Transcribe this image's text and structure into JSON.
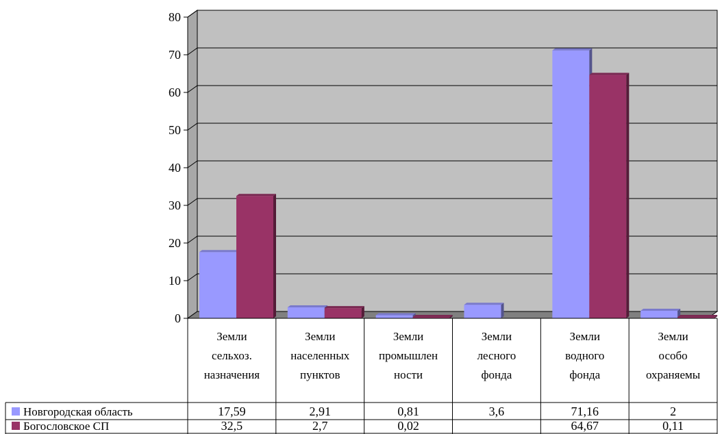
{
  "chart_data": {
    "type": "bar",
    "title": "",
    "xlabel": "",
    "ylabel": "",
    "ylim": [
      0,
      80
    ],
    "yticks": [
      "0",
      "10",
      "20",
      "30",
      "40",
      "50",
      "60",
      "70",
      "80"
    ],
    "grid": true,
    "legend_placement": "data-table-left",
    "categories": [
      [
        "Земли",
        "сельхоз.",
        "назначения"
      ],
      [
        "Земли",
        "населенных",
        "пунктов"
      ],
      [
        "Земли",
        "промышлен",
        "ности"
      ],
      [
        "Земли",
        "лесного",
        "фонда"
      ],
      [
        "Земли",
        "водного",
        "фонда"
      ],
      [
        "Земли",
        "особо",
        "охраняемы"
      ]
    ],
    "series": [
      {
        "name": "Новгородская область",
        "color": "#9999FF",
        "values": [
          17.59,
          2.91,
          0.81,
          3.6,
          71.16,
          2
        ],
        "labels": [
          "17,59",
          "2,91",
          "0,81",
          "3,6",
          "71,16",
          "2"
        ]
      },
      {
        "name": "Богословское СП",
        "color": "#993366",
        "values": [
          32.5,
          2.7,
          0.02,
          null,
          64.67,
          0.11
        ],
        "labels": [
          "32,5",
          "2,7",
          "0,02",
          "",
          "64,67",
          "0,11"
        ]
      }
    ],
    "plot_background": "#C0C0C0"
  }
}
